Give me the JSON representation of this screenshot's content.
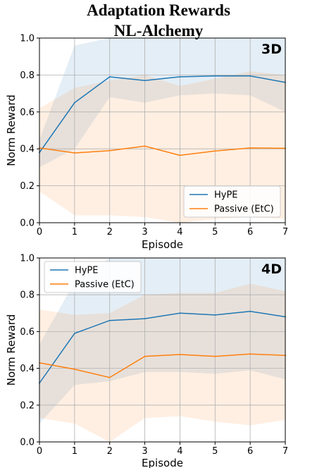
{
  "title": [
    "Adaptation Rewards",
    "NL-Alchemy"
  ],
  "colors": {
    "hype": "#1f77b4",
    "passive": "#ff7f0e",
    "grid": "#b0b0b0"
  },
  "chart_data": [
    {
      "type": "line",
      "panel_label": "3D",
      "xlabel": "Episode",
      "ylabel": "Norm Reward",
      "x": [
        0,
        1,
        2,
        3,
        4,
        5,
        6,
        7
      ],
      "xlim": [
        0,
        7
      ],
      "ylim": [
        0,
        1
      ],
      "xticks": [
        "0",
        "1",
        "2",
        "3",
        "4",
        "5",
        "6",
        "7"
      ],
      "yticks": [
        "0.0",
        "0.2",
        "0.4",
        "0.6",
        "0.8",
        "1.0"
      ],
      "grid": true,
      "legend_position": "lower-right",
      "series": [
        {
          "name": "HyPE",
          "color": "#1f77b4",
          "values": [
            0.38,
            0.65,
            0.79,
            0.77,
            0.79,
            0.795,
            0.795,
            0.76
          ],
          "band_lower": [
            0.3,
            0.4,
            0.68,
            0.65,
            0.69,
            0.7,
            0.69,
            0.6
          ],
          "band_upper": [
            0.45,
            0.96,
            1.0,
            1.0,
            1.0,
            1.0,
            1.0,
            1.0
          ]
        },
        {
          "name": "Passive (EtC)",
          "color": "#ff7f0e",
          "values": [
            0.405,
            0.378,
            0.39,
            0.415,
            0.365,
            0.388,
            0.405,
            0.403
          ],
          "band_lower": [
            0.17,
            0.04,
            0.04,
            0.03,
            0.0,
            0.02,
            0.03,
            0.02
          ],
          "band_upper": [
            0.62,
            0.73,
            0.77,
            0.8,
            0.74,
            0.78,
            0.82,
            0.8
          ]
        }
      ]
    },
    {
      "type": "line",
      "panel_label": "4D",
      "xlabel": "Episode",
      "ylabel": "Norm Reward",
      "x": [
        0,
        1,
        2,
        3,
        4,
        5,
        6,
        7
      ],
      "xlim": [
        0,
        7
      ],
      "ylim": [
        0,
        1
      ],
      "xticks": [
        "0",
        "1",
        "2",
        "3",
        "4",
        "5",
        "6",
        "7"
      ],
      "yticks": [
        "0.0",
        "0.2",
        "0.4",
        "0.6",
        "0.8",
        "1.0"
      ],
      "grid": true,
      "legend_position": "upper-left",
      "series": [
        {
          "name": "HyPE",
          "color": "#1f77b4",
          "values": [
            0.32,
            0.59,
            0.66,
            0.67,
            0.7,
            0.69,
            0.71,
            0.68
          ],
          "band_lower": [
            0.1,
            0.31,
            0.33,
            0.38,
            0.38,
            0.37,
            0.39,
            0.34
          ],
          "band_upper": [
            0.53,
            0.87,
            1.0,
            1.0,
            1.0,
            1.0,
            1.0,
            1.0
          ]
        },
        {
          "name": "Passive (EtC)",
          "color": "#ff7f0e",
          "values": [
            0.43,
            0.395,
            0.35,
            0.465,
            0.475,
            0.465,
            0.478,
            0.47
          ],
          "band_lower": [
            0.13,
            0.1,
            0.0,
            0.13,
            0.14,
            0.11,
            0.09,
            0.12
          ],
          "band_upper": [
            0.72,
            0.69,
            0.7,
            0.8,
            0.81,
            0.81,
            0.86,
            0.82
          ]
        }
      ]
    }
  ]
}
